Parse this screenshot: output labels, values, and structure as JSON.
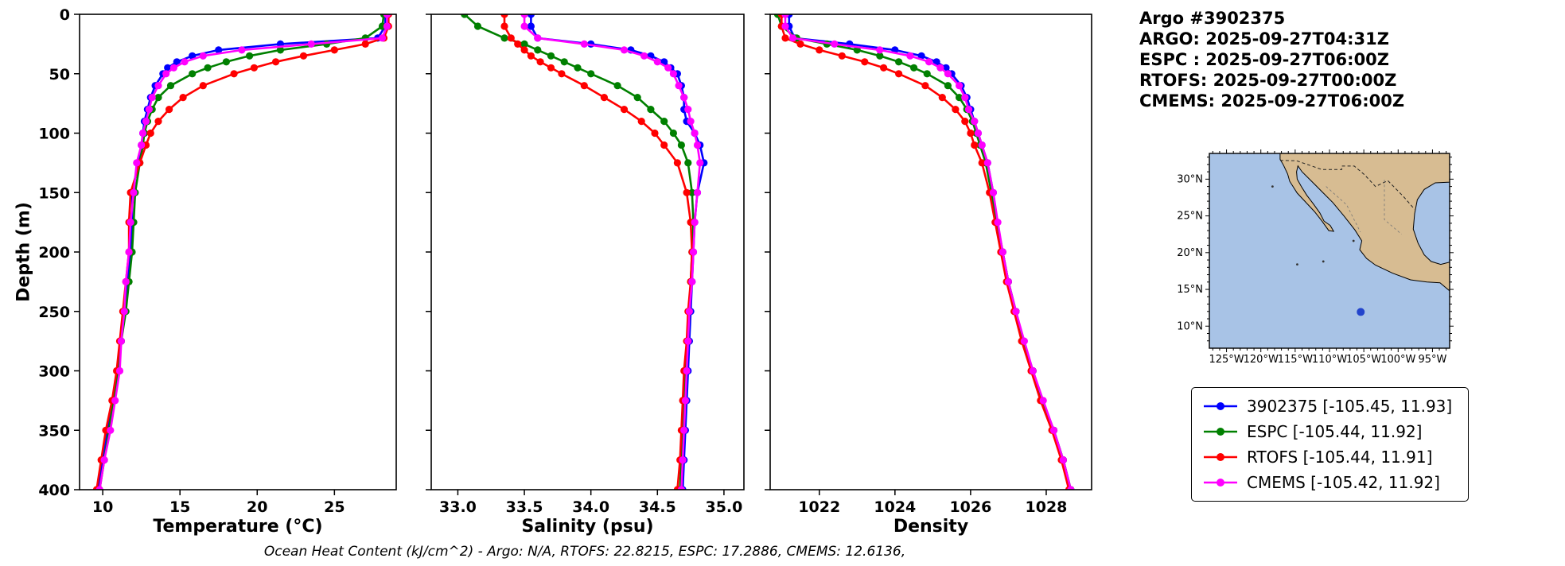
{
  "header": {
    "title": "Argo #3902375",
    "lines": [
      "ARGO: 2025-09-27T04:31Z",
      "ESPC : 2025-09-27T06:00Z",
      "RTOFS: 2025-09-27T00:00Z",
      "CMEMS: 2025-09-27T06:00Z"
    ]
  },
  "caption": "Ocean Heat Content (kJ/cm^2) - Argo: N/A,  RTOFS: 22.8215,  ESPC: 17.2886,  CMEMS: 12.6136,",
  "legend": {
    "entries": [
      {
        "name": "3902375",
        "label": "3902375 [-105.45, 11.93]",
        "color": "#0000ff"
      },
      {
        "name": "ESPC",
        "label": "ESPC [-105.44, 11.92]",
        "color": "#008000"
      },
      {
        "name": "RTOFS",
        "label": "RTOFS [-105.44, 11.91]",
        "color": "#ff0000"
      },
      {
        "name": "CMEMS",
        "label": "CMEMS [-105.42, 11.92]",
        "color": "#ff00ff"
      }
    ]
  },
  "map": {
    "ocean_color": "#a8c3e6",
    "land_color": "#d7bc92",
    "marker_color": "#2244cc",
    "float_position": {
      "lon": -105.45,
      "lat": 11.93
    },
    "lat_ticks": [
      {
        "v": 30,
        "label": "30°N"
      },
      {
        "v": 25,
        "label": "25°N"
      },
      {
        "v": 20,
        "label": "20°N"
      },
      {
        "v": 15,
        "label": "15°N"
      },
      {
        "v": 10,
        "label": "10°N"
      }
    ],
    "lon_ticks": [
      {
        "v": -125,
        "label": "125°W"
      },
      {
        "v": -120,
        "label": "120°W"
      },
      {
        "v": -115,
        "label": "115°W"
      },
      {
        "v": -110,
        "label": "110°W"
      },
      {
        "v": -105,
        "label": "105°W"
      },
      {
        "v": -100,
        "label": "100°W"
      },
      {
        "v": -95,
        "label": "95°W"
      }
    ]
  },
  "chart_data": {
    "type": "line",
    "orientation": "vertical-profile",
    "ylabel": "Depth (m)",
    "depth_range": [
      0,
      400
    ],
    "depth_ticks": [
      0,
      50,
      100,
      150,
      200,
      250,
      300,
      350,
      400
    ],
    "depths": [
      0,
      10,
      20,
      25,
      30,
      35,
      40,
      45,
      50,
      60,
      70,
      80,
      90,
      100,
      110,
      125,
      150,
      175,
      200,
      225,
      250,
      275,
      300,
      325,
      350,
      375,
      400
    ],
    "panels": [
      {
        "xlabel": "Temperature (°C)",
        "xlim": [
          8.5,
          29
        ],
        "xticks": [
          10,
          15,
          20,
          25
        ],
        "xtick_labels": [
          "10",
          "15",
          "20",
          "25"
        ],
        "series": [
          {
            "name": "3902375",
            "color": "#0000ff",
            "values": [
              28.3,
              28.3,
              27.8,
              21.5,
              17.5,
              15.8,
              14.8,
              14.2,
              13.9,
              13.4,
              13.1,
              12.9,
              12.7,
              12.6,
              12.5,
              12.3,
              11.9,
              11.9,
              11.8,
              11.6,
              11.4,
              11.2,
              11.0,
              10.7,
              10.3,
              10.0,
              9.7
            ]
          },
          {
            "name": "ESPC",
            "color": "#008000",
            "values": [
              28.2,
              28.1,
              27.0,
              24.5,
              21.5,
              19.5,
              18.0,
              16.8,
              15.8,
              14.4,
              13.6,
              13.2,
              12.9,
              12.7,
              12.6,
              12.4,
              12.1,
              12.0,
              11.9,
              11.7,
              11.5,
              11.2,
              11.0,
              10.7,
              10.4,
              10.1,
              9.8
            ]
          },
          {
            "name": "RTOFS",
            "color": "#ff0000",
            "values": [
              28.5,
              28.5,
              28.2,
              27.0,
              25.0,
              23.0,
              21.2,
              19.8,
              18.5,
              16.5,
              15.2,
              14.3,
              13.6,
              13.1,
              12.8,
              12.4,
              11.8,
              11.7,
              11.7,
              11.5,
              11.3,
              11.1,
              10.9,
              10.6,
              10.2,
              9.9,
              9.6
            ]
          },
          {
            "name": "CMEMS",
            "color": "#ff00ff",
            "values": [
              28.4,
              28.4,
              28.1,
              23.5,
              19.0,
              16.5,
              15.3,
              14.6,
              14.1,
              13.6,
              13.2,
              13.0,
              12.8,
              12.6,
              12.5,
              12.2,
              12.0,
              11.8,
              11.7,
              11.5,
              11.4,
              11.2,
              11.1,
              10.8,
              10.5,
              10.1,
              9.8
            ]
          }
        ]
      },
      {
        "xlabel": "Salinity (psu)",
        "xlim": [
          32.8,
          35.15
        ],
        "xticks": [
          33.0,
          33.5,
          34.0,
          34.5,
          35.0
        ],
        "xtick_labels": [
          "33.0",
          "33.5",
          "34.0",
          "34.5",
          "35.0"
        ],
        "series": [
          {
            "name": "3902375",
            "color": "#0000ff",
            "values": [
              33.55,
              33.55,
              33.6,
              34.0,
              34.3,
              34.45,
              34.55,
              34.6,
              34.65,
              34.68,
              34.7,
              34.7,
              34.72,
              34.78,
              34.82,
              34.85,
              34.8,
              34.78,
              34.77,
              34.76,
              34.75,
              34.74,
              34.73,
              34.72,
              34.71,
              34.7,
              34.69
            ]
          },
          {
            "name": "ESPC",
            "color": "#008000",
            "values": [
              33.05,
              33.15,
              33.35,
              33.5,
              33.6,
              33.7,
              33.8,
              33.9,
              34.0,
              34.2,
              34.35,
              34.45,
              34.55,
              34.62,
              34.68,
              34.73,
              34.76,
              34.77,
              34.76,
              34.75,
              34.74,
              34.73,
              34.71,
              34.7,
              34.69,
              34.68,
              34.67
            ]
          },
          {
            "name": "RTOFS",
            "color": "#ff0000",
            "values": [
              33.35,
              33.35,
              33.4,
              33.45,
              33.5,
              33.55,
              33.62,
              33.7,
              33.78,
              33.95,
              34.1,
              34.25,
              34.38,
              34.48,
              34.55,
              34.65,
              34.72,
              34.75,
              34.76,
              34.75,
              34.73,
              34.72,
              34.7,
              34.69,
              34.68,
              34.67,
              34.65
            ]
          },
          {
            "name": "CMEMS",
            "color": "#ff00ff",
            "values": [
              33.5,
              33.5,
              33.6,
              33.95,
              34.25,
              34.4,
              34.5,
              34.58,
              34.62,
              34.66,
              34.7,
              34.73,
              34.75,
              34.78,
              34.8,
              34.82,
              34.8,
              34.78,
              34.77,
              34.76,
              34.74,
              34.73,
              34.72,
              34.71,
              34.7,
              34.69,
              34.68
            ]
          }
        ]
      },
      {
        "xlabel": "Density",
        "xlim": [
          1020.7,
          1029.2
        ],
        "xticks": [
          1022,
          1024,
          1026,
          1028
        ],
        "xtick_labels": [
          "1022",
          "1024",
          "1026",
          "1028"
        ],
        "series": [
          {
            "name": "3902375",
            "color": "#0000ff",
            "values": [
              1021.2,
              1021.2,
              1021.35,
              1022.8,
              1024.0,
              1024.7,
              1025.1,
              1025.35,
              1025.5,
              1025.75,
              1025.9,
              1026.0,
              1026.1,
              1026.2,
              1026.3,
              1026.45,
              1026.6,
              1026.7,
              1026.85,
              1027.0,
              1027.2,
              1027.4,
              1027.65,
              1027.9,
              1028.2,
              1028.45,
              1028.65
            ]
          },
          {
            "name": "ESPC",
            "color": "#008000",
            "values": [
              1020.9,
              1021.0,
              1021.4,
              1022.2,
              1023.0,
              1023.6,
              1024.1,
              1024.5,
              1024.85,
              1025.4,
              1025.7,
              1025.9,
              1026.05,
              1026.15,
              1026.25,
              1026.4,
              1026.55,
              1026.7,
              1026.85,
              1027.0,
              1027.2,
              1027.4,
              1027.65,
              1027.9,
              1028.2,
              1028.45,
              1028.65
            ]
          },
          {
            "name": "RTOFS",
            "color": "#ff0000",
            "values": [
              1021.0,
              1021.0,
              1021.1,
              1021.5,
              1022.0,
              1022.6,
              1023.2,
              1023.7,
              1024.1,
              1024.8,
              1025.25,
              1025.6,
              1025.85,
              1026.0,
              1026.1,
              1026.3,
              1026.5,
              1026.65,
              1026.8,
              1026.95,
              1027.15,
              1027.35,
              1027.6,
              1027.85,
              1028.15,
              1028.4,
              1028.6
            ]
          },
          {
            "name": "CMEMS",
            "color": "#ff00ff",
            "values": [
              1021.1,
              1021.1,
              1021.3,
              1022.4,
              1023.6,
              1024.4,
              1024.9,
              1025.2,
              1025.4,
              1025.7,
              1025.85,
              1025.95,
              1026.1,
              1026.2,
              1026.3,
              1026.45,
              1026.6,
              1026.72,
              1026.85,
              1027.0,
              1027.2,
              1027.42,
              1027.65,
              1027.92,
              1028.2,
              1028.45,
              1028.65
            ]
          }
        ]
      }
    ]
  }
}
